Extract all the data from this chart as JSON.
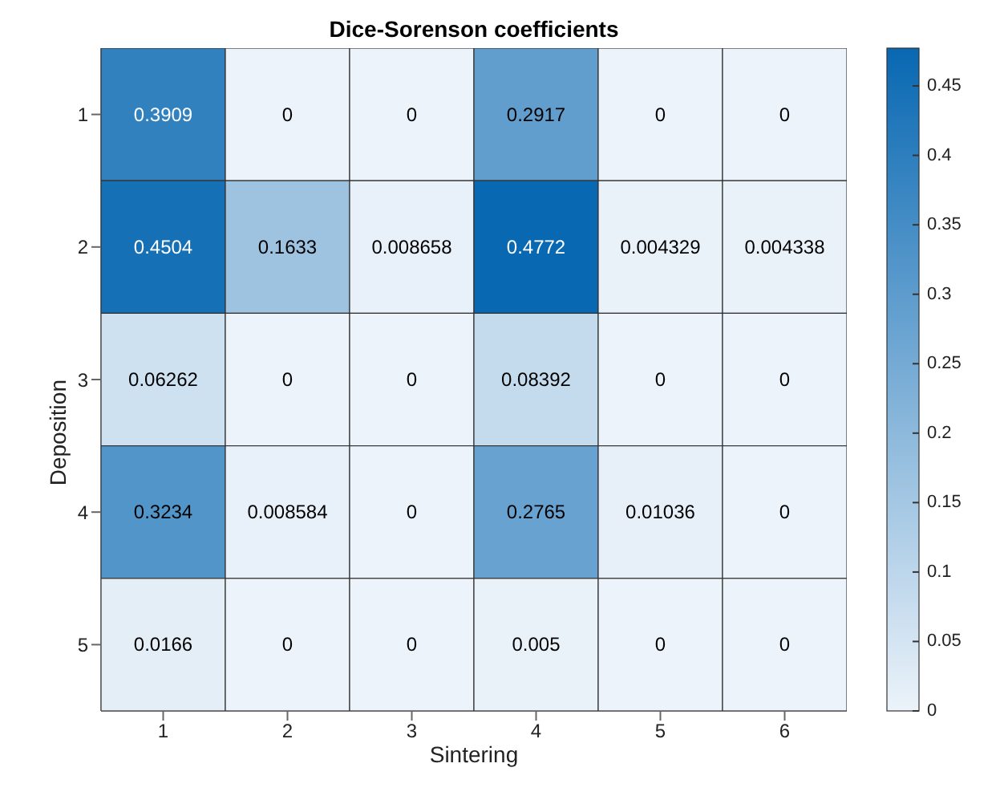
{
  "chart_data": {
    "type": "heatmap",
    "title": "Dice-Sorenson coefficients",
    "xlabel": "Sintering",
    "ylabel": "Deposition",
    "categories": [
      "1",
      "2",
      "3",
      "4",
      "5",
      "6"
    ],
    "y_categories": [
      "1",
      "2",
      "3",
      "4",
      "5"
    ],
    "cells": [
      [
        0.3909,
        0,
        0,
        0.2917,
        0,
        0
      ],
      [
        0.4504,
        0.1633,
        0.008658,
        0.4772,
        0.004329,
        0.004338
      ],
      [
        0.06262,
        0,
        0,
        0.08392,
        0,
        0
      ],
      [
        0.3234,
        0.008584,
        0,
        0.2765,
        0.01036,
        0
      ],
      [
        0.0166,
        0,
        0,
        0.005,
        0,
        0
      ]
    ],
    "data_labels": true,
    "clim": [
      0,
      0.4772
    ],
    "cticks": [
      0,
      0.05,
      0.1,
      0.15,
      0.2,
      0.25,
      0.3,
      0.35,
      0.4,
      0.45
    ]
  }
}
